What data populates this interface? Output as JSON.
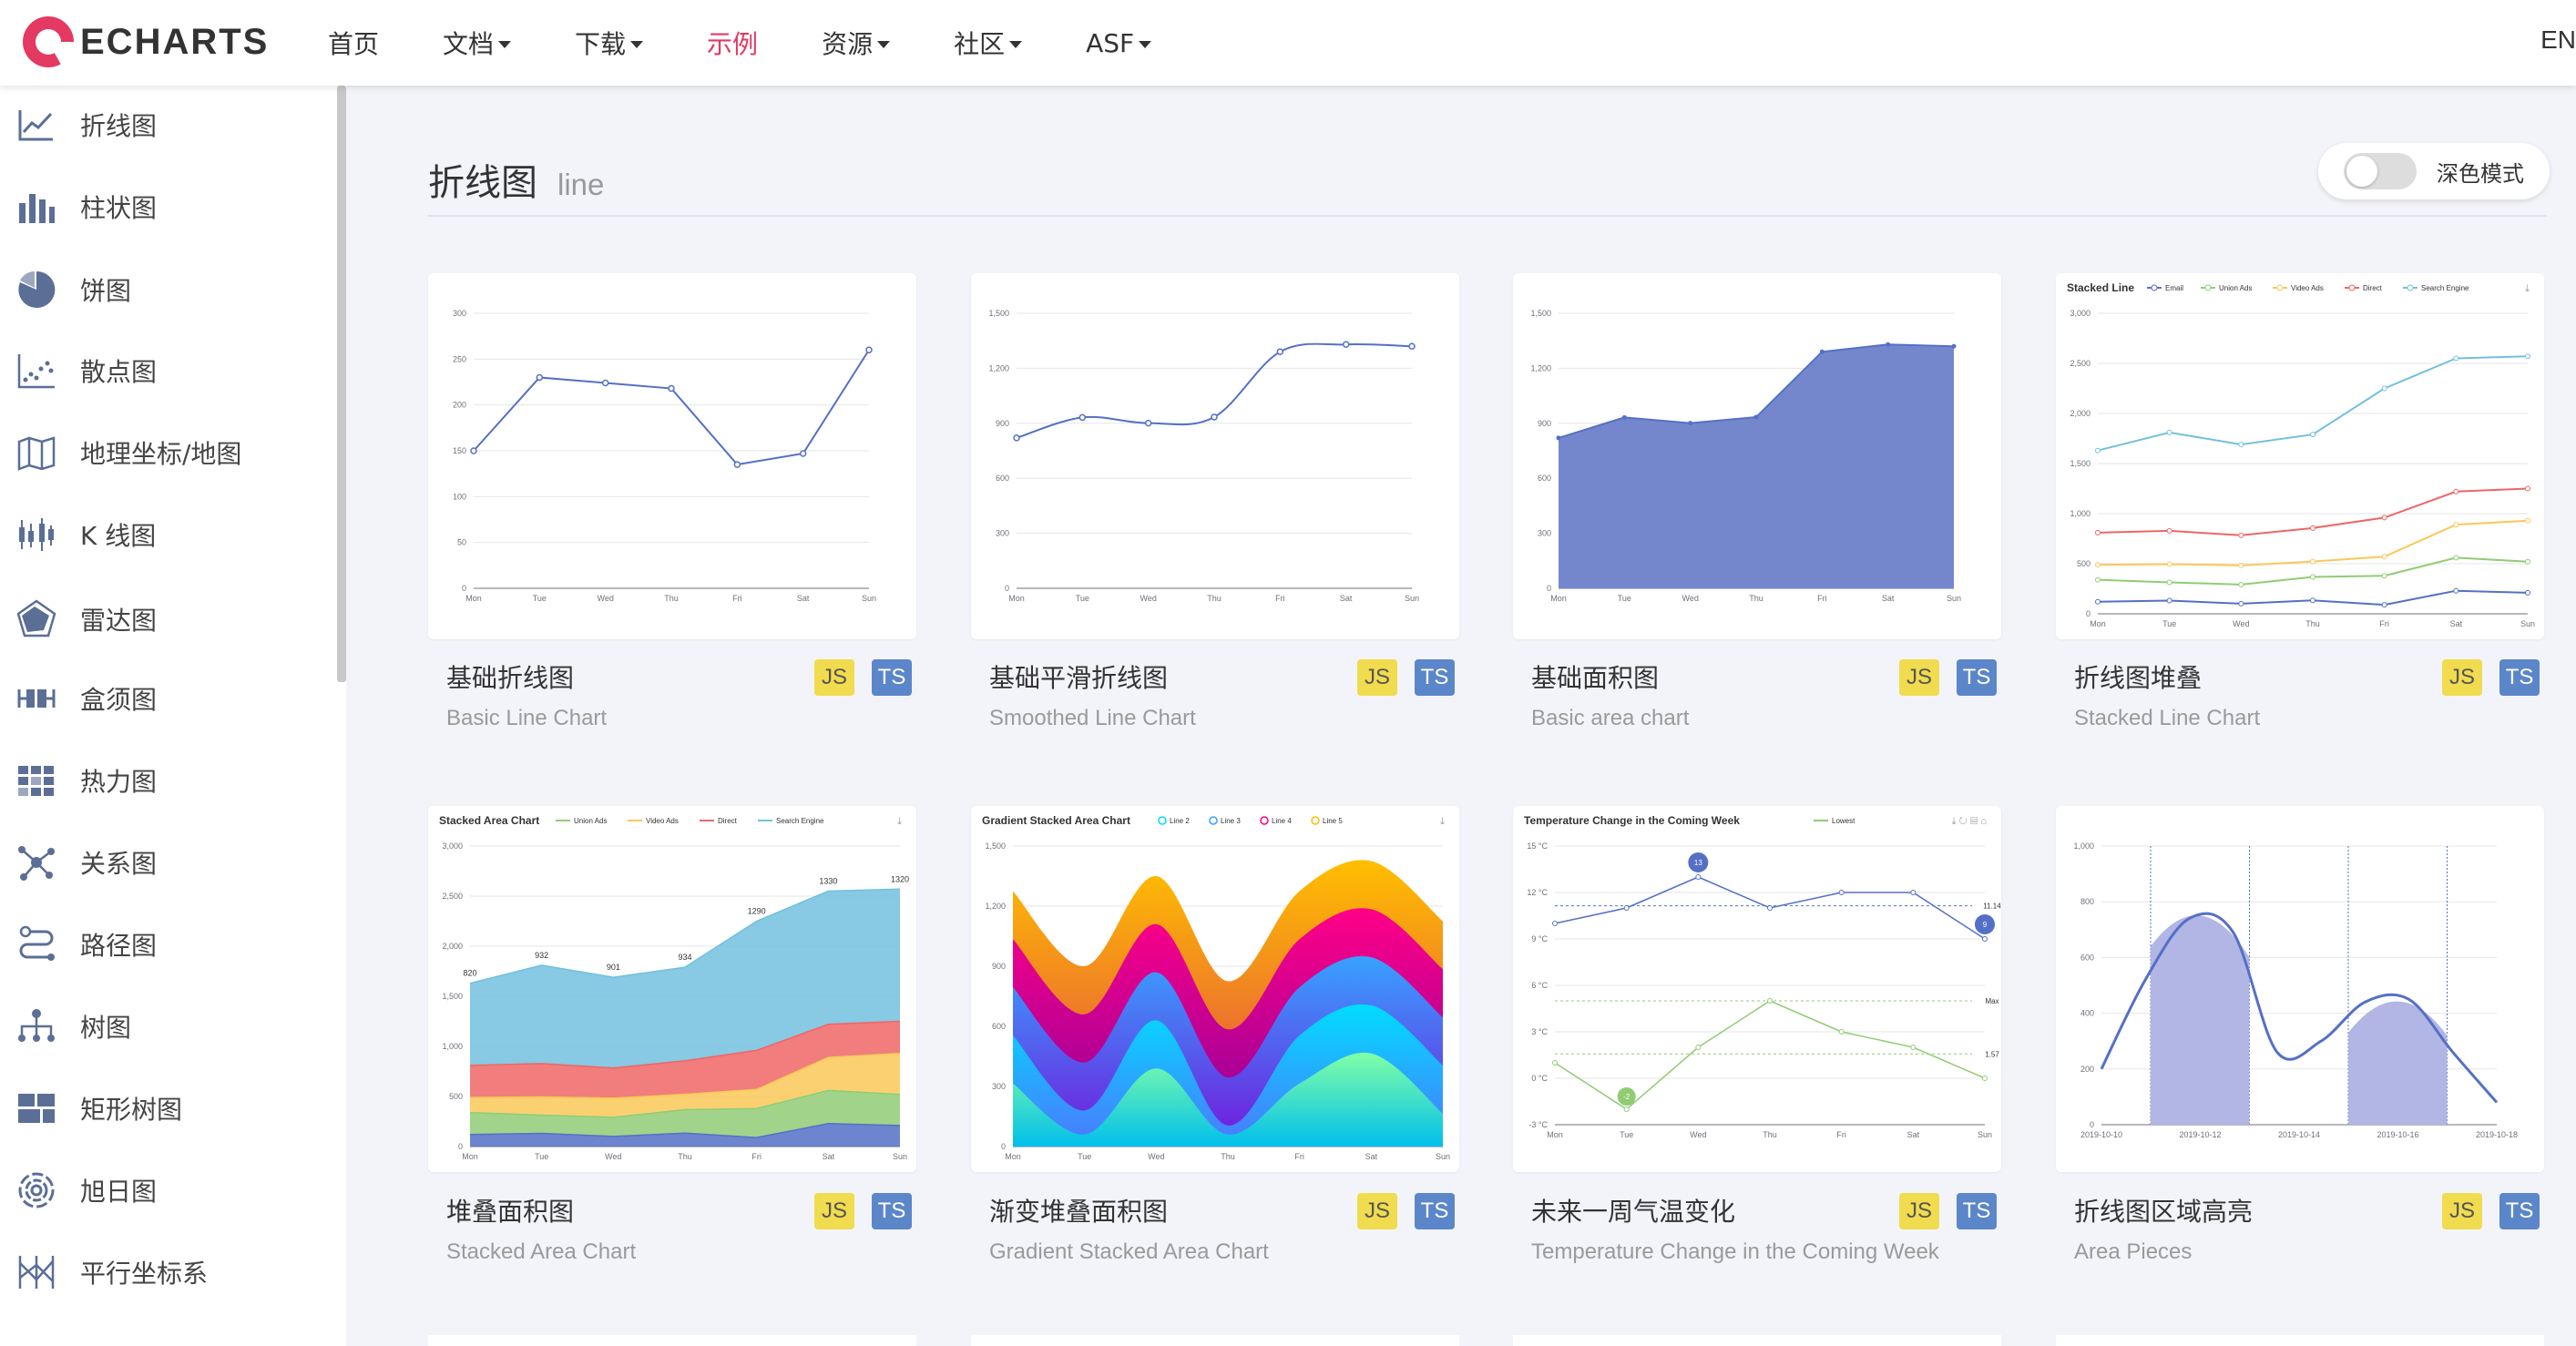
{
  "header": {
    "logo_text": "ECHARTS",
    "nav": [
      {
        "label": "首页",
        "has_menu": false
      },
      {
        "label": "文档",
        "has_menu": true
      },
      {
        "label": "下载",
        "has_menu": true
      },
      {
        "label": "示例",
        "has_menu": false,
        "active": true
      },
      {
        "label": "资源",
        "has_menu": true
      },
      {
        "label": "社区",
        "has_menu": true
      },
      {
        "label": "ASF",
        "has_menu": true
      }
    ],
    "lang": "EN"
  },
  "sidebar": {
    "items": [
      {
        "label": "折线图",
        "icon": "line-chart-icon"
      },
      {
        "label": "柱状图",
        "icon": "bar-chart-icon"
      },
      {
        "label": "饼图",
        "icon": "pie-chart-icon"
      },
      {
        "label": "散点图",
        "icon": "scatter-icon"
      },
      {
        "label": "地理坐标/地图",
        "icon": "map-icon"
      },
      {
        "label": "K 线图",
        "icon": "candlestick-icon"
      },
      {
        "label": "雷达图",
        "icon": "radar-icon"
      },
      {
        "label": "盒须图",
        "icon": "boxplot-icon"
      },
      {
        "label": "热力图",
        "icon": "heatmap-icon"
      },
      {
        "label": "关系图",
        "icon": "graph-icon"
      },
      {
        "label": "路径图",
        "icon": "lines-icon"
      },
      {
        "label": "树图",
        "icon": "tree-icon"
      },
      {
        "label": "矩形树图",
        "icon": "treemap-icon"
      },
      {
        "label": "旭日图",
        "icon": "sunburst-icon"
      },
      {
        "label": "平行坐标系",
        "icon": "parallel-icon"
      }
    ]
  },
  "main": {
    "title": "折线图",
    "subtitle": "line",
    "dark_mode_label": "深色模式",
    "cards": [
      {
        "title": "基础折线图",
        "subtitle": "Basic Line Chart",
        "js": "JS",
        "ts": "TS"
      },
      {
        "title": "基础平滑折线图",
        "subtitle": "Smoothed Line Chart",
        "js": "JS",
        "ts": "TS"
      },
      {
        "title": "基础面积图",
        "subtitle": "Basic area chart",
        "js": "JS",
        "ts": "TS"
      },
      {
        "title": "折线图堆叠",
        "subtitle": "Stacked Line Chart",
        "js": "JS",
        "ts": "TS"
      },
      {
        "title": "堆叠面积图",
        "subtitle": "Stacked Area Chart",
        "js": "JS",
        "ts": "TS"
      },
      {
        "title": "渐变堆叠面积图",
        "subtitle": "Gradient Stacked Area Chart",
        "js": "JS",
        "ts": "TS"
      },
      {
        "title": "未来一周气温变化",
        "subtitle": "Temperature Change in the Coming Week",
        "js": "JS",
        "ts": "TS"
      },
      {
        "title": "折线图区域高亮",
        "subtitle": "Area Pieces",
        "js": "JS",
        "ts": "TS"
      }
    ]
  },
  "thumbs": {
    "days": [
      "Mon",
      "Tue",
      "Wed",
      "Thu",
      "Fri",
      "Sat",
      "Sun"
    ],
    "basic_line": {
      "values": [
        150,
        230,
        224,
        218,
        135,
        147,
        260
      ],
      "ticks": [
        "0",
        "50",
        "100",
        "150",
        "200",
        "250",
        "300"
      ],
      "ymax": 300
    },
    "smooth_line": {
      "values": [
        820,
        932,
        901,
        934,
        1290,
        1330,
        1320
      ],
      "ticks": [
        "0",
        "300",
        "600",
        "900",
        "1,200",
        "1,500"
      ],
      "ymax": 1500
    },
    "basic_area": {
      "values": [
        820,
        932,
        901,
        934,
        1290,
        1330,
        1320
      ],
      "ticks": [
        "0",
        "300",
        "600",
        "900",
        "1,200",
        "1,500"
      ],
      "ymax": 1500
    },
    "stacked_line": {
      "title": "Stacked Line",
      "ticks": [
        "0",
        "500",
        "1,000",
        "1,500",
        "2,000",
        "2,500",
        "3,000"
      ],
      "ymax": 3000,
      "series": [
        {
          "name": "Email",
          "color": "#5470c6",
          "values": [
            120,
            132,
            101,
            134,
            90,
            230,
            210
          ]
        },
        {
          "name": "Union Ads",
          "color": "#91cc75",
          "values": [
            340,
            314,
            292,
            368,
            380,
            560,
            520
          ]
        },
        {
          "name": "Video Ads",
          "color": "#fac858",
          "values": [
            490,
            496,
            483,
            522,
            570,
            890,
            930
          ]
        },
        {
          "name": "Direct",
          "color": "#ee6666",
          "values": [
            810,
            828,
            784,
            856,
            960,
            1220,
            1250
          ]
        },
        {
          "name": "Search Engine",
          "color": "#73c0de",
          "values": [
            1630,
            1810,
            1690,
            1790,
            2250,
            2550,
            2570
          ]
        }
      ]
    },
    "stacked_area": {
      "title": "Stacked Area Chart",
      "ticks": [
        "0",
        "500",
        "1,000",
        "1,500",
        "2,000",
        "2,500",
        "3,000"
      ],
      "ymax": 3000,
      "top_labels": [
        "820",
        "932",
        "901",
        "934",
        "1290",
        "1330",
        "1320"
      ],
      "series": [
        {
          "name": "Email",
          "color": "#5470c6",
          "values": [
            120,
            132,
            101,
            134,
            90,
            230,
            210
          ]
        },
        {
          "name": "Union Ads",
          "color": "#91cc75",
          "values": [
            340,
            314,
            292,
            368,
            380,
            560,
            520
          ]
        },
        {
          "name": "Video Ads",
          "color": "#fac858",
          "values": [
            490,
            496,
            483,
            522,
            570,
            890,
            930
          ]
        },
        {
          "name": "Direct",
          "color": "#ee6666",
          "values": [
            810,
            828,
            784,
            856,
            960,
            1220,
            1250
          ]
        },
        {
          "name": "Search Engine",
          "color": "#73c0de",
          "values": [
            1630,
            1810,
            1690,
            1790,
            2250,
            2550,
            2570
          ]
        }
      ]
    },
    "gradient_area": {
      "title": "Gradient Stacked Area Chart",
      "legend": [
        "Line 2",
        "Line 3",
        "Line 4",
        "Line 5"
      ],
      "ticks": [
        "0",
        "300",
        "600",
        "900",
        "1,200",
        "1,500"
      ]
    },
    "temperature": {
      "title": "Temperature Change in the Coming Week",
      "legend": [
        "Lowest"
      ],
      "ticks": [
        "-3 °C",
        "0 °C",
        "3 °C",
        "6 °C",
        "9 °C",
        "12 °C",
        "15 °C"
      ],
      "highest": [
        10,
        11,
        13,
        11,
        12,
        12,
        9
      ],
      "lowest": [
        1,
        -2,
        2,
        5,
        3,
        2,
        0
      ],
      "marks": [
        "13",
        "9",
        "-2",
        "11.14",
        "1.57",
        "Max"
      ]
    },
    "area_pieces": {
      "dates": [
        "2019-10-10",
        "2019-10-12",
        "2019-10-14",
        "2019-10-16",
        "2019-10-18"
      ],
      "ticks": [
        "0",
        "200",
        "400",
        "600",
        "800",
        "1,000"
      ]
    }
  },
  "colors": {
    "accent": "#e43961",
    "brand": "#e43961",
    "ts": "#5b86c9",
    "js": "#f0dc4e",
    "line": "#5470c6"
  }
}
